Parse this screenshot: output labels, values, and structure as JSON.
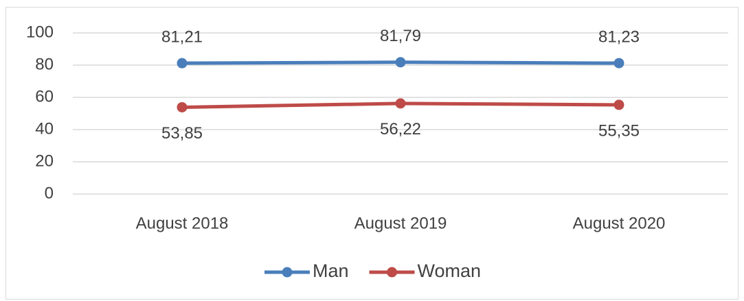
{
  "chart_data": {
    "type": "line",
    "categories": [
      "August 2018",
      "August 2019",
      "August 2020"
    ],
    "series": [
      {
        "name": "Man",
        "color": "#4a7ebb",
        "values": [
          81.21,
          81.79,
          81.23
        ],
        "value_labels": [
          "81,21",
          "81,79",
          "81,23"
        ]
      },
      {
        "name": "Woman",
        "color": "#be4b48",
        "values": [
          53.85,
          56.22,
          55.35
        ],
        "value_labels": [
          "53,85",
          "56,22",
          "55,35"
        ]
      }
    ],
    "ylim": [
      0,
      100
    ],
    "yticks": [
      0,
      20,
      40,
      60,
      80,
      100
    ],
    "grid": true,
    "legend": "bottom"
  }
}
